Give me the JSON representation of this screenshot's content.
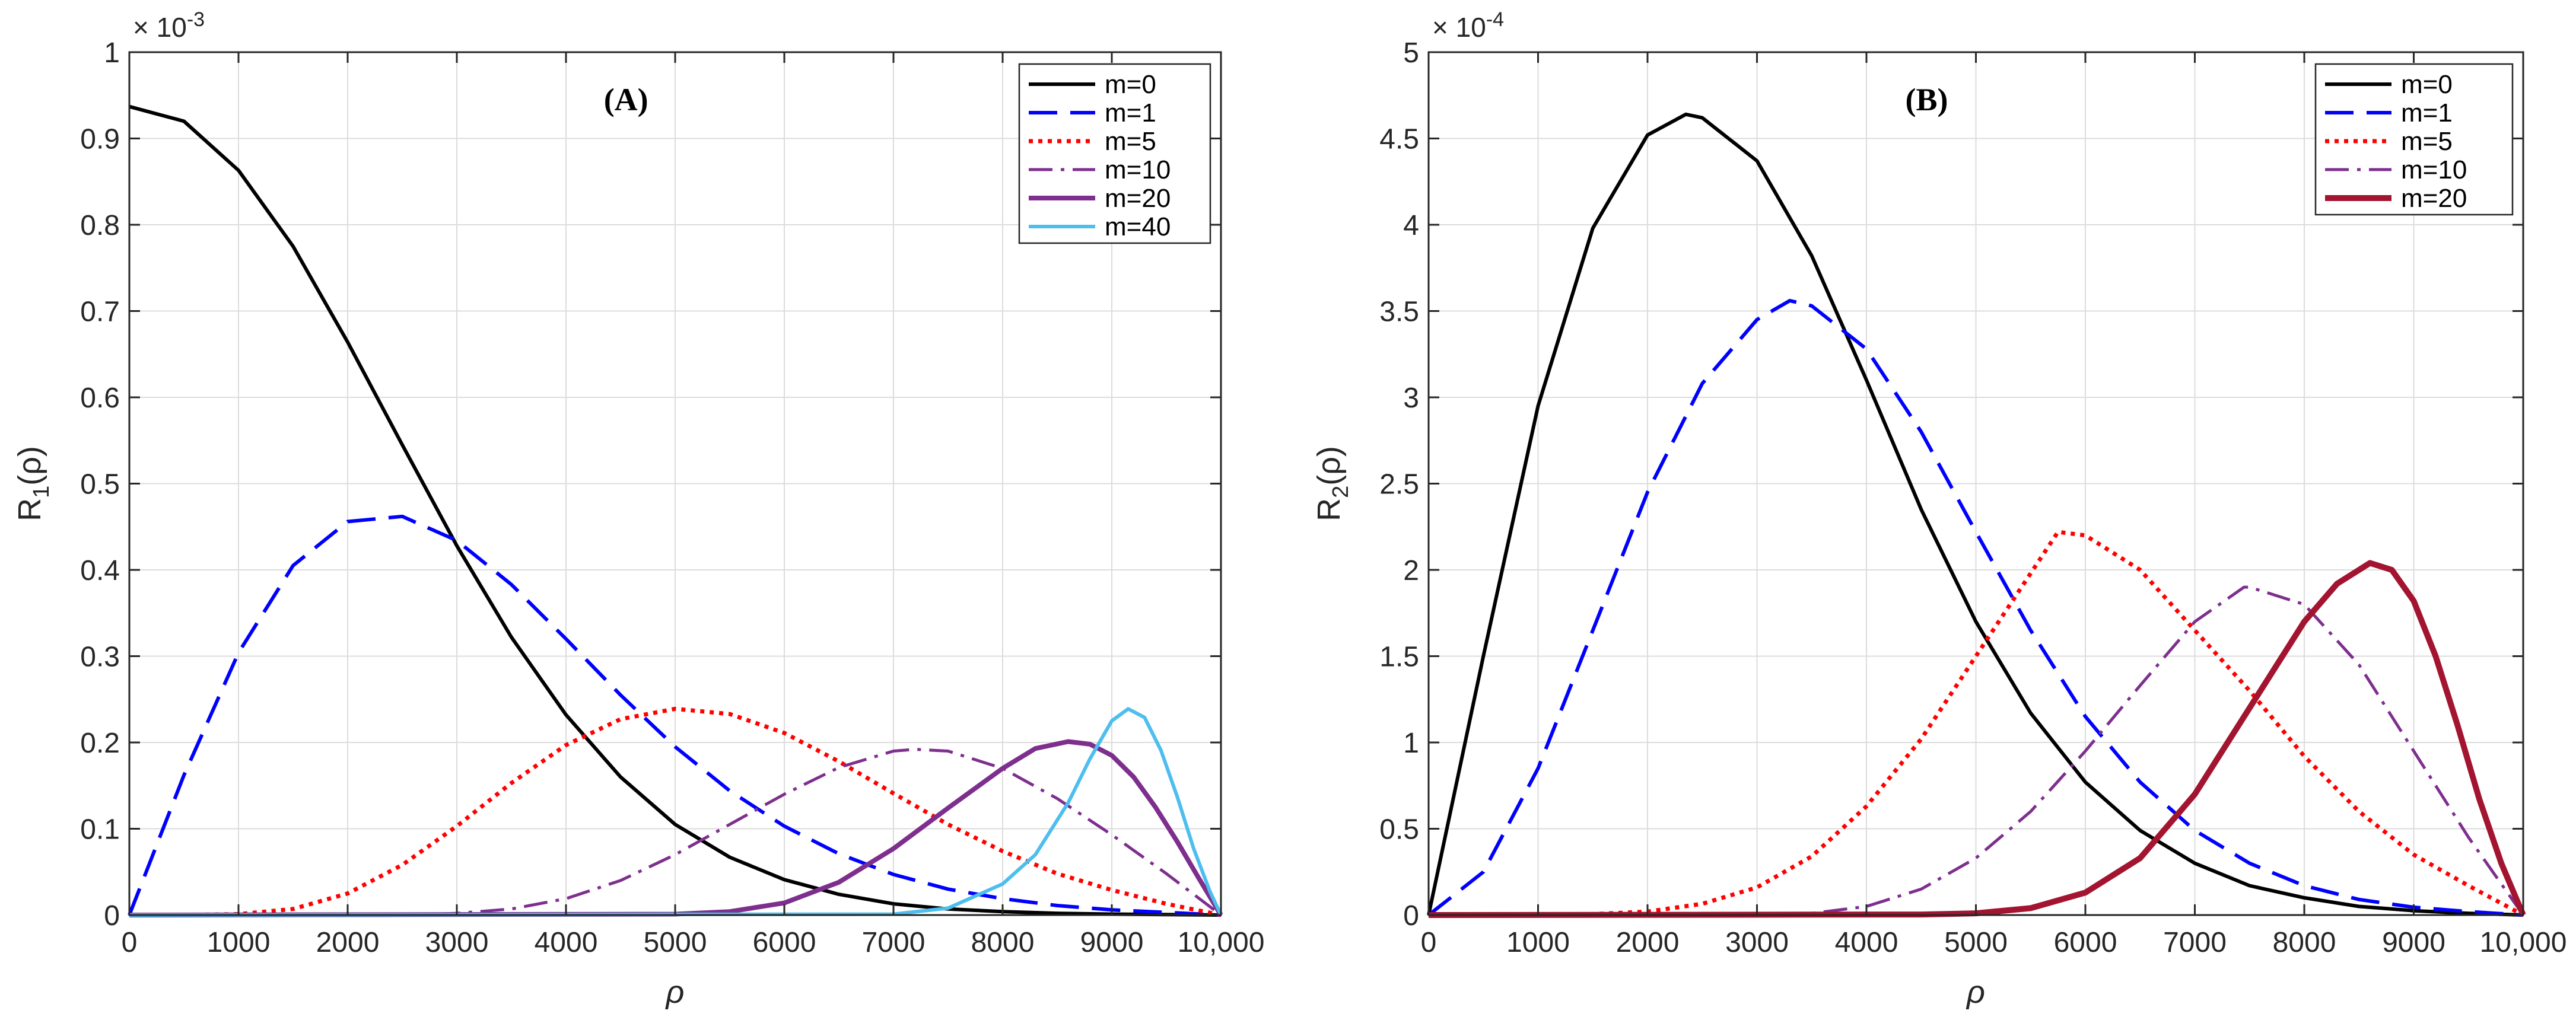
{
  "chart_data": [
    {
      "type": "line",
      "panel_label": "(A)",
      "xlabel": "ρ",
      "ylabel": {
        "base": "R",
        "subscript": "1",
        "suffix": "(ρ)"
      },
      "y_multiplier": {
        "prefix": "× 10",
        "exponent": "-3"
      },
      "xlim": [
        0,
        10000
      ],
      "ylim": [
        0,
        1
      ],
      "xticks": [
        0,
        1000,
        2000,
        3000,
        4000,
        5000,
        6000,
        7000,
        8000,
        9000,
        10000
      ],
      "xtick_labels": [
        "0",
        "1000",
        "2000",
        "3000",
        "4000",
        "5000",
        "6000",
        "7000",
        "8000",
        "9000",
        "10,000"
      ],
      "yticks": [
        0,
        0.1,
        0.2,
        0.3,
        0.4,
        0.5,
        0.6,
        0.7,
        0.8,
        0.9,
        1
      ],
      "ytick_labels": [
        "0",
        "0.1",
        "0.2",
        "0.3",
        "0.4",
        "0.5",
        "0.6",
        "0.7",
        "0.8",
        "0.9",
        "1"
      ],
      "grid": true,
      "legend_position": "top-right",
      "series": [
        {
          "name": "m=0",
          "color": "#000000",
          "dash": "solid",
          "width": 6,
          "x": [
            0,
            500,
            1000,
            1500,
            2000,
            2500,
            3000,
            3500,
            4000,
            4500,
            5000,
            5500,
            6000,
            6500,
            7000,
            7500,
            8000,
            8500,
            9000,
            9500,
            10000
          ],
          "y": [
            0.937,
            0.92,
            0.863,
            0.775,
            0.664,
            0.545,
            0.428,
            0.322,
            0.232,
            0.16,
            0.105,
            0.067,
            0.041,
            0.024,
            0.013,
            0.007,
            0.004,
            0.002,
            0.001,
            0.0005,
            0
          ]
        },
        {
          "name": "m=1",
          "color": "#0000ff",
          "dash": "long",
          "width": 6,
          "x": [
            0,
            500,
            1000,
            1500,
            2000,
            2500,
            3000,
            3500,
            4000,
            4500,
            5000,
            5500,
            6000,
            6500,
            7000,
            7500,
            8000,
            8500,
            9000,
            9500,
            10000
          ],
          "y": [
            0,
            0.162,
            0.304,
            0.405,
            0.456,
            0.462,
            0.434,
            0.383,
            0.32,
            0.255,
            0.195,
            0.144,
            0.103,
            0.071,
            0.047,
            0.03,
            0.019,
            0.011,
            0.006,
            0.003,
            0
          ]
        },
        {
          "name": "m=5",
          "color": "#ff0000",
          "dash": "dot",
          "width": 7,
          "x": [
            0,
            500,
            1000,
            1500,
            2000,
            2500,
            3000,
            3500,
            4000,
            4500,
            5000,
            5500,
            6000,
            6500,
            7000,
            7500,
            8000,
            8500,
            9000,
            9500,
            10000
          ],
          "y": [
            0,
            0,
            0.001,
            0.007,
            0.025,
            0.058,
            0.103,
            0.153,
            0.197,
            0.227,
            0.239,
            0.233,
            0.211,
            0.178,
            0.141,
            0.105,
            0.074,
            0.048,
            0.029,
            0.013,
            0
          ]
        },
        {
          "name": "m=10",
          "color": "#7e2f8e",
          "dash": "dashdot",
          "width": 5,
          "x": [
            0,
            2500,
            3000,
            3500,
            4000,
            4500,
            5000,
            5500,
            6000,
            6500,
            7000,
            7200,
            7500,
            8000,
            8500,
            9000,
            9500,
            10000
          ],
          "y": [
            0,
            0,
            0.002,
            0.007,
            0.019,
            0.04,
            0.07,
            0.105,
            0.14,
            0.171,
            0.19,
            0.192,
            0.19,
            0.17,
            0.135,
            0.093,
            0.048,
            0
          ]
        },
        {
          "name": "m=20",
          "color": "#7e2f8e",
          "dash": "solid",
          "width": 8,
          "x": [
            0,
            5000,
            5500,
            6000,
            6500,
            7000,
            7500,
            8000,
            8300,
            8600,
            8800,
            9000,
            9200,
            9400,
            9600,
            9800,
            10000
          ],
          "y": [
            0,
            0.001,
            0.004,
            0.014,
            0.038,
            0.077,
            0.124,
            0.17,
            0.193,
            0.201,
            0.198,
            0.185,
            0.16,
            0.125,
            0.085,
            0.042,
            0
          ]
        },
        {
          "name": "m=40",
          "color": "#4dbeee",
          "dash": "solid",
          "width": 6,
          "x": [
            0,
            7000,
            7500,
            8000,
            8300,
            8600,
            8800,
            9000,
            9150,
            9300,
            9450,
            9600,
            9750,
            9900,
            10000
          ],
          "y": [
            0,
            0.001,
            0.008,
            0.036,
            0.07,
            0.13,
            0.181,
            0.225,
            0.239,
            0.229,
            0.191,
            0.137,
            0.077,
            0.027,
            0
          ]
        }
      ]
    },
    {
      "type": "line",
      "panel_label": "(B)",
      "xlabel": "ρ",
      "ylabel": {
        "base": "R",
        "subscript": "2",
        "suffix": "(ρ)"
      },
      "y_multiplier": {
        "prefix": "× 10",
        "exponent": "-4"
      },
      "xlim": [
        0,
        10000
      ],
      "ylim": [
        0,
        5
      ],
      "xticks": [
        0,
        1000,
        2000,
        3000,
        4000,
        5000,
        6000,
        7000,
        8000,
        9000,
        10000
      ],
      "xtick_labels": [
        "0",
        "1000",
        "2000",
        "3000",
        "4000",
        "5000",
        "6000",
        "7000",
        "8000",
        "9000",
        "10,000"
      ],
      "yticks": [
        0,
        0.5,
        1,
        1.5,
        2,
        2.5,
        3,
        3.5,
        4,
        4.5,
        5
      ],
      "ytick_labels": [
        "0",
        "0.5",
        "1",
        "1.5",
        "2",
        "2.5",
        "3",
        "3.5",
        "4",
        "4.5",
        "5"
      ],
      "grid": true,
      "legend_position": "top-right",
      "series": [
        {
          "name": "m=0",
          "color": "#000000",
          "dash": "solid",
          "width": 6,
          "x": [
            0,
            500,
            1000,
            1500,
            2000,
            2350,
            2500,
            3000,
            3500,
            4000,
            4500,
            5000,
            5500,
            6000,
            6500,
            7000,
            7500,
            8000,
            8500,
            9000,
            9500,
            10000
          ],
          "y": [
            0,
            1.5,
            2.95,
            3.98,
            4.52,
            4.64,
            4.62,
            4.37,
            3.82,
            3.1,
            2.35,
            1.7,
            1.17,
            0.77,
            0.49,
            0.3,
            0.17,
            0.1,
            0.05,
            0.025,
            0.01,
            0
          ]
        },
        {
          "name": "m=1",
          "color": "#0000ff",
          "dash": "long",
          "width": 6,
          "x": [
            0,
            500,
            1000,
            1500,
            2000,
            2500,
            3000,
            3300,
            3500,
            4000,
            4500,
            5000,
            5500,
            6000,
            6500,
            7000,
            7500,
            8000,
            8500,
            9000,
            9500,
            10000
          ],
          "y": [
            0,
            0.25,
            0.85,
            1.65,
            2.45,
            3.08,
            3.45,
            3.56,
            3.53,
            3.28,
            2.8,
            2.22,
            1.65,
            1.15,
            0.77,
            0.49,
            0.3,
            0.17,
            0.09,
            0.045,
            0.02,
            0
          ]
        },
        {
          "name": "m=5",
          "color": "#ff0000",
          "dash": "dot",
          "width": 7,
          "x": [
            0,
            1000,
            1500,
            2000,
            2500,
            3000,
            3500,
            4000,
            4500,
            5000,
            5500,
            5750,
            6000,
            6500,
            7000,
            7500,
            8000,
            8500,
            9000,
            9500,
            10000
          ],
          "y": [
            0,
            0.001,
            0.005,
            0.02,
            0.065,
            0.16,
            0.34,
            0.63,
            1.02,
            1.5,
            1.98,
            2.22,
            2.2,
            2.0,
            1.65,
            1.3,
            0.92,
            0.6,
            0.35,
            0.17,
            0
          ]
        },
        {
          "name": "m=10",
          "color": "#7e2f8e",
          "dash": "dashdot",
          "width": 5,
          "x": [
            0,
            3000,
            3500,
            4000,
            4500,
            5000,
            5500,
            6000,
            6500,
            7000,
            7450,
            7500,
            8000,
            8500,
            9000,
            9500,
            10000
          ],
          "y": [
            0,
            0.002,
            0.01,
            0.05,
            0.15,
            0.33,
            0.6,
            0.95,
            1.33,
            1.7,
            1.9,
            1.9,
            1.8,
            1.45,
            0.95,
            0.45,
            0
          ]
        },
        {
          "name": "m=20",
          "color": "#a2142f",
          "dash": "solid",
          "width": 10,
          "x": [
            0,
            4500,
            5000,
            5500,
            6000,
            6500,
            7000,
            7500,
            8000,
            8300,
            8600,
            8800,
            9000,
            9200,
            9400,
            9600,
            9800,
            10000
          ],
          "y": [
            0,
            0.003,
            0.01,
            0.04,
            0.13,
            0.33,
            0.7,
            1.2,
            1.7,
            1.92,
            2.04,
            2.0,
            1.82,
            1.5,
            1.1,
            0.67,
            0.3,
            0
          ]
        }
      ]
    }
  ]
}
